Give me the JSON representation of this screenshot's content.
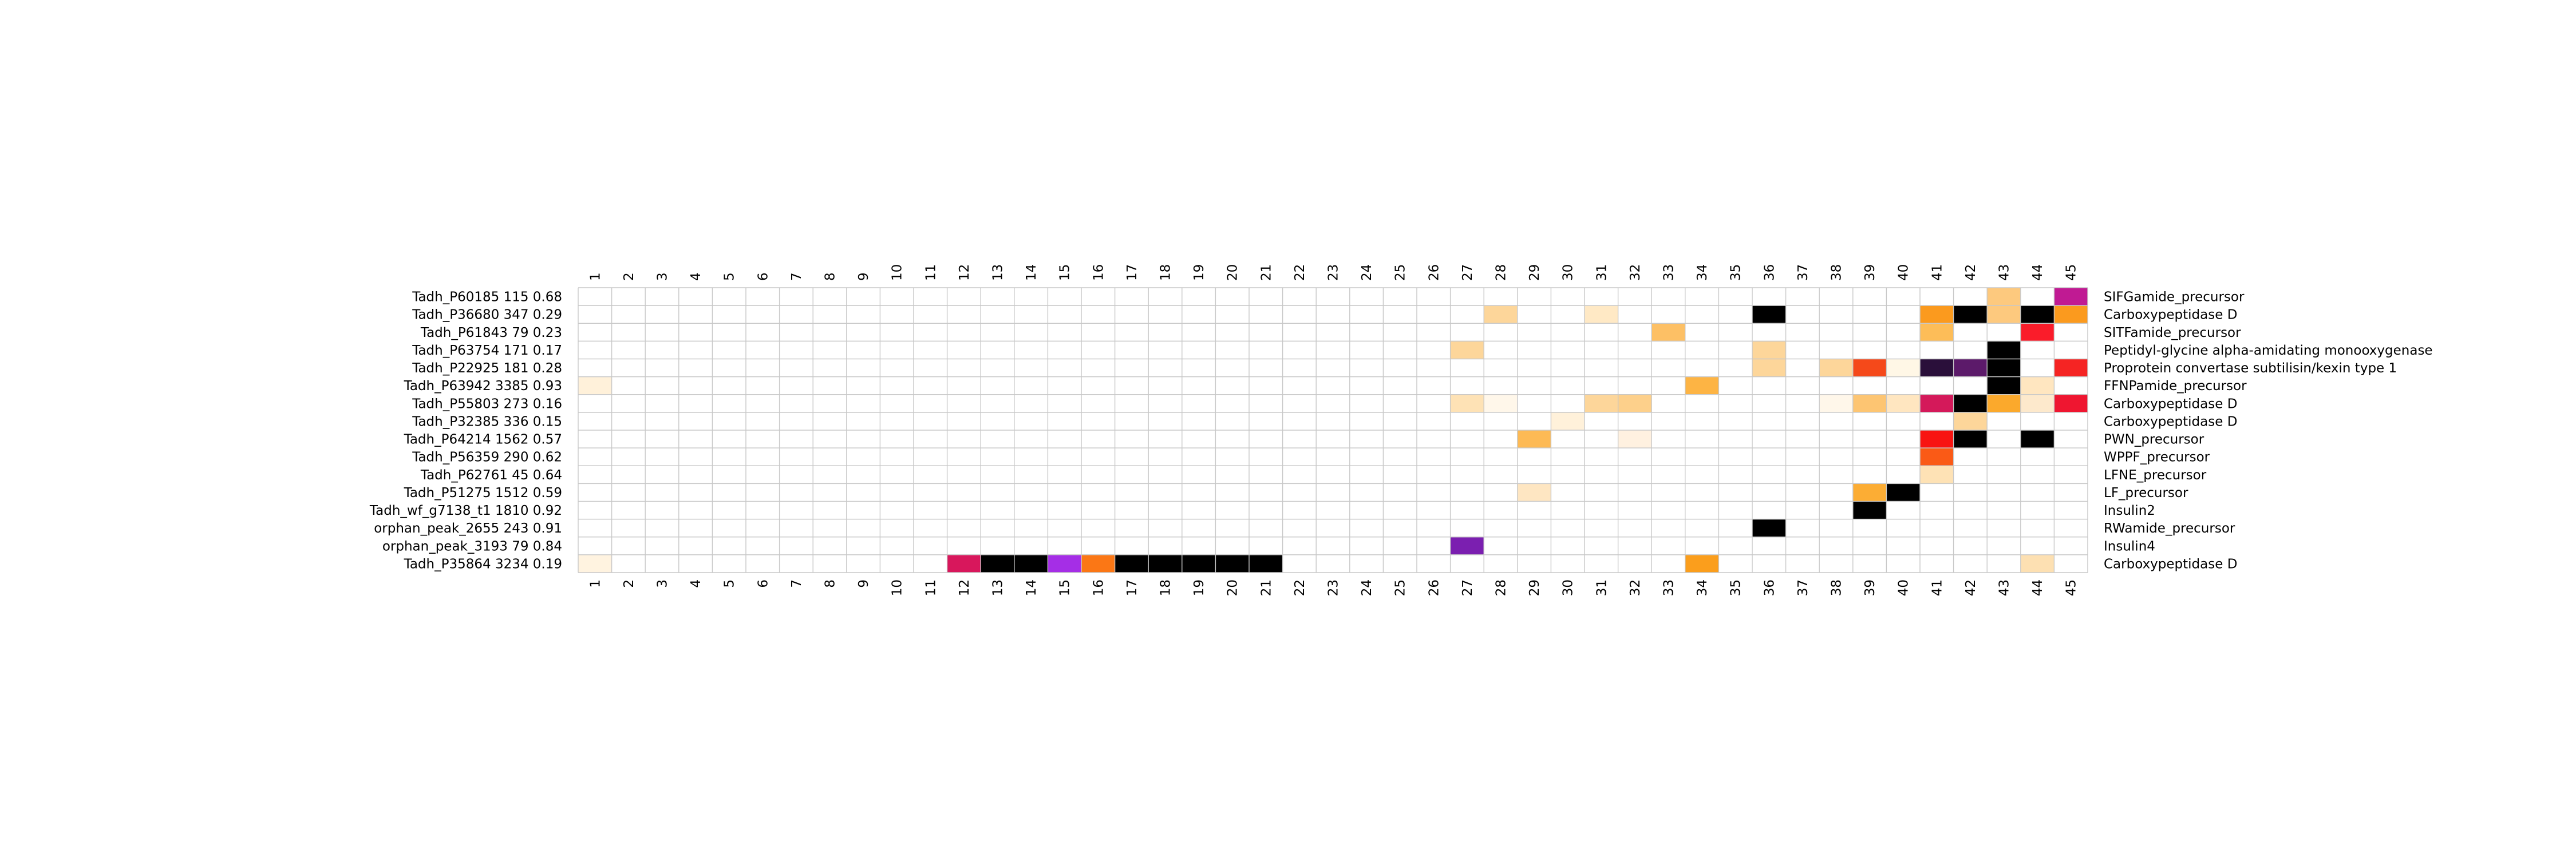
{
  "chart_data": {
    "type": "heatmap",
    "columns": [
      "1",
      "2",
      "3",
      "4",
      "5",
      "6",
      "7",
      "8",
      "9",
      "10",
      "11",
      "12",
      "13",
      "14",
      "15",
      "16",
      "17",
      "18",
      "19",
      "20",
      "21",
      "22",
      "23",
      "24",
      "25",
      "26",
      "27",
      "28",
      "29",
      "30",
      "31",
      "32",
      "33",
      "34",
      "35",
      "36",
      "37",
      "38",
      "39",
      "40",
      "41",
      "42",
      "43",
      "44",
      "45"
    ],
    "rows": [
      {
        "label": "Tadh_P60185 115 0.68",
        "annotation": "SIFGamide_precursor"
      },
      {
        "label": "Tadh_P36680 347 0.29",
        "annotation": "Carboxypeptidase D"
      },
      {
        "label": "Tadh_P61843 79 0.23",
        "annotation": "SITFamide_precursor"
      },
      {
        "label": "Tadh_P63754 171 0.17",
        "annotation": "Peptidyl-glycine alpha-amidating monooxygenase"
      },
      {
        "label": "Tadh_P22925 181 0.28",
        "annotation": "Proprotein convertase subtilisin/kexin type 1"
      },
      {
        "label": "Tadh_P63942 3385 0.93",
        "annotation": "FFNPamide_precursor"
      },
      {
        "label": "Tadh_P55803 273 0.16",
        "annotation": "Carboxypeptidase D"
      },
      {
        "label": "Tadh_P32385 336 0.15",
        "annotation": "Carboxypeptidase D"
      },
      {
        "label": "Tadh_P64214 1562 0.57",
        "annotation": "PWN_precursor"
      },
      {
        "label": "Tadh_P56359 290 0.62",
        "annotation": "WPPF_precursor"
      },
      {
        "label": "Tadh_P62761 45 0.64",
        "annotation": "LFNE_precursor"
      },
      {
        "label": "Tadh_P51275 1512 0.59",
        "annotation": "LF_precursor"
      },
      {
        "label": "Tadh_wf_g7138_t1 1810 0.92",
        "annotation": "Insulin2"
      },
      {
        "label": "orphan_peak_2655 243 0.91",
        "annotation": "RWamide_precursor"
      },
      {
        "label": "orphan_peak_3193 79 0.84",
        "annotation": "Insulin4"
      },
      {
        "label": "Tadh_P35864 3234 0.19",
        "annotation": "Carboxypeptidase D"
      }
    ],
    "cells": [
      {
        "row": 0,
        "col": 43,
        "color": "#fdc97e"
      },
      {
        "row": 0,
        "col": 45,
        "color": "#c01a93"
      },
      {
        "row": 1,
        "col": 28,
        "color": "#fdd69a"
      },
      {
        "row": 1,
        "col": 31,
        "color": "#ffe9c5"
      },
      {
        "row": 1,
        "col": 36,
        "color": "#000000"
      },
      {
        "row": 1,
        "col": 41,
        "color": "#fb9a1e"
      },
      {
        "row": 1,
        "col": 42,
        "color": "#000000"
      },
      {
        "row": 1,
        "col": 43,
        "color": "#fdc97e"
      },
      {
        "row": 1,
        "col": 44,
        "color": "#000000"
      },
      {
        "row": 1,
        "col": 45,
        "color": "#fb9a1e"
      },
      {
        "row": 2,
        "col": 33,
        "color": "#fdc065"
      },
      {
        "row": 2,
        "col": 41,
        "color": "#fdbd58"
      },
      {
        "row": 2,
        "col": 44,
        "color": "#fa1c2a"
      },
      {
        "row": 3,
        "col": 27,
        "color": "#fdd69a"
      },
      {
        "row": 3,
        "col": 36,
        "color": "#fdd69a"
      },
      {
        "row": 3,
        "col": 43,
        "color": "#000000"
      },
      {
        "row": 4,
        "col": 36,
        "color": "#fdd69a"
      },
      {
        "row": 4,
        "col": 38,
        "color": "#fdd69a"
      },
      {
        "row": 4,
        "col": 39,
        "color": "#f5491a"
      },
      {
        "row": 4,
        "col": 40,
        "color": "#fff7e6"
      },
      {
        "row": 4,
        "col": 41,
        "color": "#2a0f3a"
      },
      {
        "row": 4,
        "col": 42,
        "color": "#5c1a6a"
      },
      {
        "row": 4,
        "col": 43,
        "color": "#000000"
      },
      {
        "row": 4,
        "col": 45,
        "color": "#f52423"
      },
      {
        "row": 5,
        "col": 1,
        "color": "#fff1da"
      },
      {
        "row": 5,
        "col": 34,
        "color": "#fdb444"
      },
      {
        "row": 5,
        "col": 43,
        "color": "#000000"
      },
      {
        "row": 5,
        "col": 44,
        "color": "#ffe6c0"
      },
      {
        "row": 6,
        "col": 27,
        "color": "#fee2b5"
      },
      {
        "row": 6,
        "col": 28,
        "color": "#fff7ea"
      },
      {
        "row": 6,
        "col": 31,
        "color": "#fdd69a"
      },
      {
        "row": 6,
        "col": 32,
        "color": "#fdd08b"
      },
      {
        "row": 6,
        "col": 38,
        "color": "#fff7ea"
      },
      {
        "row": 6,
        "col": 39,
        "color": "#fdc572"
      },
      {
        "row": 6,
        "col": 40,
        "color": "#ffe6c0"
      },
      {
        "row": 6,
        "col": 41,
        "color": "#d4195a"
      },
      {
        "row": 6,
        "col": 42,
        "color": "#000000"
      },
      {
        "row": 6,
        "col": 43,
        "color": "#fba92c"
      },
      {
        "row": 6,
        "col": 44,
        "color": "#fde9cc"
      },
      {
        "row": 6,
        "col": 45,
        "color": "#ef1630"
      },
      {
        "row": 7,
        "col": 30,
        "color": "#fff1da"
      },
      {
        "row": 7,
        "col": 42,
        "color": "#fdd69a"
      },
      {
        "row": 8,
        "col": 29,
        "color": "#fdba55"
      },
      {
        "row": 8,
        "col": 32,
        "color": "#fff1e0"
      },
      {
        "row": 8,
        "col": 41,
        "color": "#f81412"
      },
      {
        "row": 8,
        "col": 42,
        "color": "#000000"
      },
      {
        "row": 8,
        "col": 44,
        "color": "#000000"
      },
      {
        "row": 9,
        "col": 41,
        "color": "#fa5a16"
      },
      {
        "row": 10,
        "col": 41,
        "color": "#fee2b5"
      },
      {
        "row": 11,
        "col": 29,
        "color": "#fee6c2"
      },
      {
        "row": 11,
        "col": 39,
        "color": "#fcad34"
      },
      {
        "row": 11,
        "col": 40,
        "color": "#000000"
      },
      {
        "row": 12,
        "col": 39,
        "color": "#000000"
      },
      {
        "row": 13,
        "col": 36,
        "color": "#000000"
      },
      {
        "row": 14,
        "col": 27,
        "color": "#7b1fb0"
      },
      {
        "row": 15,
        "col": 1,
        "color": "#fff3e0"
      },
      {
        "row": 15,
        "col": 12,
        "color": "#d8175c"
      },
      {
        "row": 15,
        "col": 13,
        "color": "#000000"
      },
      {
        "row": 15,
        "col": 14,
        "color": "#000000"
      },
      {
        "row": 15,
        "col": 15,
        "color": "#a52ee6"
      },
      {
        "row": 15,
        "col": 16,
        "color": "#fb7715"
      },
      {
        "row": 15,
        "col": 17,
        "color": "#000000"
      },
      {
        "row": 15,
        "col": 18,
        "color": "#000000"
      },
      {
        "row": 15,
        "col": 19,
        "color": "#000000"
      },
      {
        "row": 15,
        "col": 20,
        "color": "#000000"
      },
      {
        "row": 15,
        "col": 21,
        "color": "#000000"
      },
      {
        "row": 15,
        "col": 34,
        "color": "#fb9e1c"
      },
      {
        "row": 15,
        "col": 44,
        "color": "#fde0b2"
      }
    ],
    "empty_color": "#ffffff",
    "grid_color": "#c8c8c8",
    "legend": "none",
    "title": "",
    "xlabel": "",
    "ylabel": ""
  }
}
